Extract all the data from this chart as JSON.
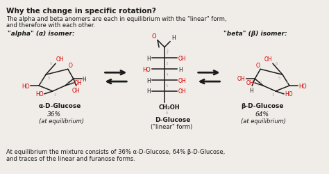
{
  "title": "Why the change in specific rotation?",
  "subtitle1": "The alpha and beta anomers are each in equilibrium with the \"linear\" form,",
  "subtitle2": "and therefore with each other.",
  "bg_color": "#f0ede8",
  "text_color": "#1a1a1a",
  "red_color": "#cc0000",
  "gray_color": "#aaaaaa",
  "alpha_label": "\"alpha\" (α) isomer:",
  "beta_label": "\"beta\" (β) isomer:",
  "alpha_name": "α-D-Glucose",
  "beta_name": "β-D-Glucose",
  "linear_name": "D-Glucose",
  "linear_sub": "(\"linear\" form)",
  "alpha_pct": "36%",
  "alpha_eq": "(at equilibrium)",
  "beta_pct": "64%",
  "beta_eq": "(at equilibrium)",
  "footer1": "At equilibrium the mixture consists of 36% α-D-Glucose, 64% β-D-Glucose,",
  "footer2": "and traces of the linear and furanose forms."
}
